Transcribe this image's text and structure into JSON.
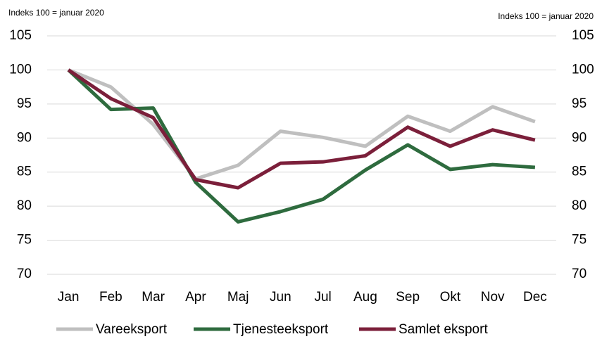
{
  "chart_data": {
    "type": "line",
    "y_label": "Indeks 100 = januar 2020",
    "y2_label": "Indeks 100 = januar 2020",
    "categories": [
      "Jan",
      "Feb",
      "Mar",
      "Apr",
      "Maj",
      "Jun",
      "Jul",
      "Aug",
      "Sep",
      "Okt",
      "Nov",
      "Dec"
    ],
    "series": [
      {
        "name": "Vareeksport",
        "color": "#bfbfbf",
        "values": [
          100,
          97.5,
          92,
          84,
          86,
          91,
          90.1,
          88.8,
          93.2,
          91,
          94.6,
          92.4
        ]
      },
      {
        "name": "Tjenesteeksport",
        "color": "#2e6b3e",
        "values": [
          100,
          94.2,
          94.4,
          83.5,
          77.7,
          79.2,
          81,
          85.3,
          89,
          85.4,
          86.1,
          85.7
        ]
      },
      {
        "name": "Samlet eksport",
        "color": "#7b1f3a",
        "values": [
          100,
          95.8,
          93,
          83.9,
          82.7,
          86.3,
          86.5,
          87.4,
          91.6,
          88.8,
          91.2,
          89.7
        ]
      }
    ],
    "ylim": [
      70,
      105
    ],
    "yticks": [
      70,
      75,
      80,
      85,
      90,
      95,
      100,
      105
    ],
    "y2lim": [
      70,
      105
    ],
    "y2ticks": [
      70,
      75,
      80,
      85,
      90,
      95,
      100,
      105
    ],
    "grid": true,
    "legend": "bottom"
  }
}
